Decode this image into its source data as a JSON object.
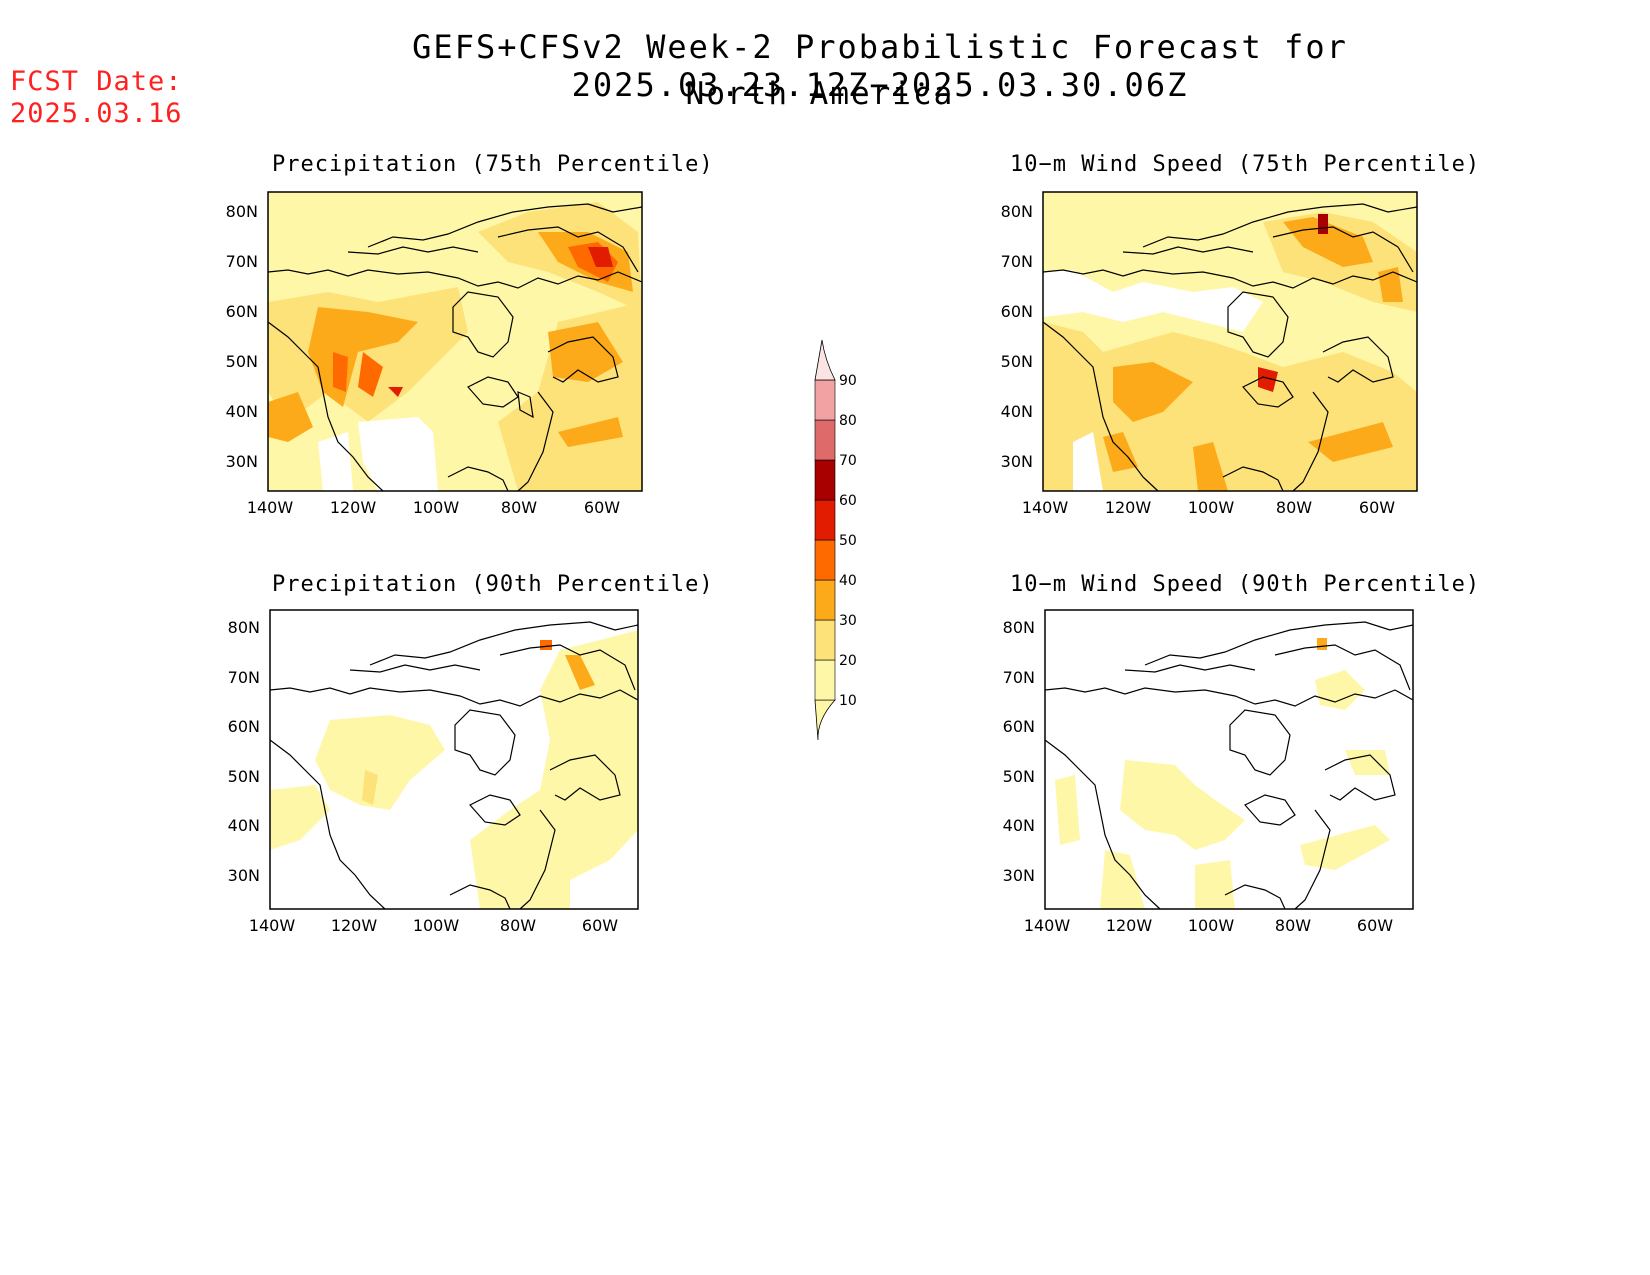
{
  "title": "GEFS+CFSv2 Week-2 Probabilistic Forecast for 2025.03.23.12Z−2025.03.30.06Z",
  "subtitle": "North America",
  "fcst_label": "FCST Date:",
  "fcst_date": "2025.03.16",
  "panels": [
    {
      "title": "Precipitation (75th Percentile)"
    },
    {
      "title": "10−m Wind Speed (75th Percentile)"
    },
    {
      "title": "Precipitation (90th Percentile)"
    },
    {
      "title": "10−m Wind Speed (90th Percentile)"
    }
  ],
  "axes": {
    "lon_labels": [
      "140W",
      "120W",
      "100W",
      "80W",
      "60W"
    ],
    "lat_labels": [
      "80N",
      "70N",
      "60N",
      "50N",
      "40N",
      "30N"
    ]
  },
  "colorbar": {
    "levels": [
      "10",
      "20",
      "30",
      "40",
      "50",
      "60",
      "70",
      "80",
      "90"
    ],
    "colors": [
      "#fff7a8",
      "#fde27a",
      "#fdaa1a",
      "#ff6a00",
      "#e21c00",
      "#a80000",
      "#de6a6a",
      "#f2a2a2",
      "#fbe4e4"
    ]
  }
}
